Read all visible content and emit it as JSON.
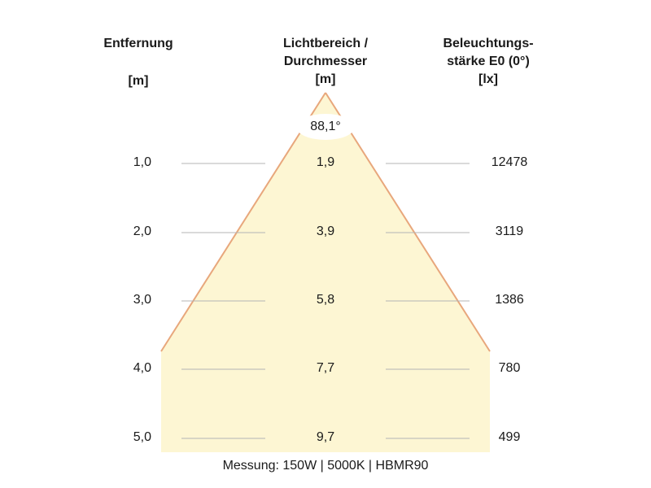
{
  "headers": {
    "distance": {
      "title": "Entfernung",
      "unit": "[m]"
    },
    "diameter": {
      "title_line1": "Lichtbereich /",
      "title_line2": "Durchmesser",
      "unit": "[m]"
    },
    "illuminance": {
      "title_line1": "Beleuchtungs-",
      "title_line2": "stärke E0 (0°)",
      "unit": "[lx]"
    }
  },
  "beam_angle": "88,1°",
  "rows": [
    {
      "distance": "1,0",
      "diameter": "1,9",
      "illuminance": "12478"
    },
    {
      "distance": "2,0",
      "diameter": "3,9",
      "illuminance": "3119"
    },
    {
      "distance": "3,0",
      "diameter": "5,8",
      "illuminance": "1386"
    },
    {
      "distance": "4,0",
      "diameter": "7,7",
      "illuminance": "780"
    },
    {
      "distance": "5,0",
      "diameter": "9,7",
      "illuminance": "499"
    }
  ],
  "footer": "Messung: 150W | 5000K | HBMR90",
  "colors": {
    "cone_fill": "#fdf6d3",
    "cone_edge": "#e8a77c",
    "guide_line": "#b4b4b4"
  }
}
